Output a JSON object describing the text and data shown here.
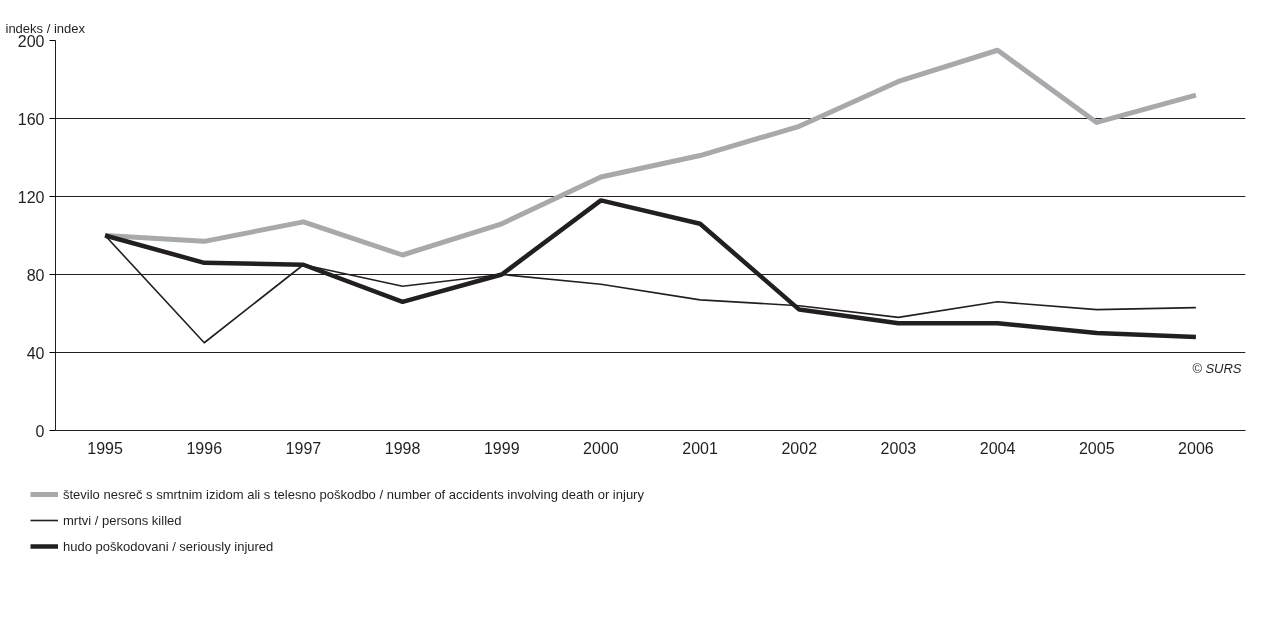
{
  "chart_data": {
    "type": "line",
    "ylabel": "indeks / index",
    "categories": [
      "1995",
      "1996",
      "1997",
      "1998",
      "1999",
      "2000",
      "2001",
      "2002",
      "2003",
      "2004",
      "2005",
      "2006"
    ],
    "ylim": [
      0,
      200
    ],
    "yticks": [
      0,
      40,
      80,
      120,
      160,
      200
    ],
    "grid": "y",
    "legend": "bottom",
    "line_style": "solid",
    "marker": "none",
    "series": [
      {
        "name": "število nesreč s smrtnim izidom ali s telesno poškodbo / number of accidents involving death or injury",
        "color": "#a7a9ac",
        "values": [
          100,
          97,
          107,
          90,
          106,
          130,
          141,
          156,
          179,
          195,
          158,
          172
        ]
      },
      {
        "name": "mrtvi / persons killed",
        "color": "#231f20",
        "values": [
          100,
          45,
          85,
          74,
          80,
          75,
          67,
          64,
          58,
          66,
          62,
          63
        ]
      },
      {
        "name": "hudo poškodovani / seriously injured",
        "color": "#231f20",
        "values": [
          100,
          86,
          85,
          66,
          80,
          118,
          106,
          62,
          55,
          55,
          50,
          48
        ]
      }
    ],
    "annotations": [
      "© SURS"
    ]
  }
}
